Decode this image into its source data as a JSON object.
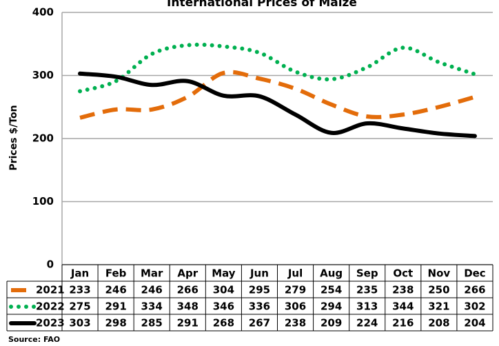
{
  "chart_data": {
    "type": "line",
    "title": "International Prices of Maize",
    "y_label": "Prices $/Ton",
    "categories": [
      "Jan",
      "Feb",
      "Mar",
      "Apr",
      "May",
      "Jun",
      "Jul",
      "Aug",
      "Sep",
      "Oct",
      "Nov",
      "Dec"
    ],
    "series": [
      {
        "name": "2021",
        "color": "#e36c0a",
        "style": "dashed",
        "values": [
          233,
          246,
          246,
          266,
          304,
          295,
          279,
          254,
          235,
          238,
          250,
          266
        ]
      },
      {
        "name": "2022",
        "color": "#00b050",
        "style": "dotted",
        "values": [
          275,
          291,
          334,
          348,
          346,
          336,
          306,
          294,
          313,
          344,
          321,
          302
        ]
      },
      {
        "name": "2023",
        "color": "#000000",
        "style": "solid",
        "values": [
          303,
          298,
          285,
          291,
          268,
          267,
          238,
          209,
          224,
          216,
          208,
          204
        ]
      }
    ],
    "ylim": [
      0,
      400
    ],
    "yticks": [
      0,
      100,
      200,
      300,
      400
    ],
    "grid": true,
    "source": "Source:  FAO"
  }
}
